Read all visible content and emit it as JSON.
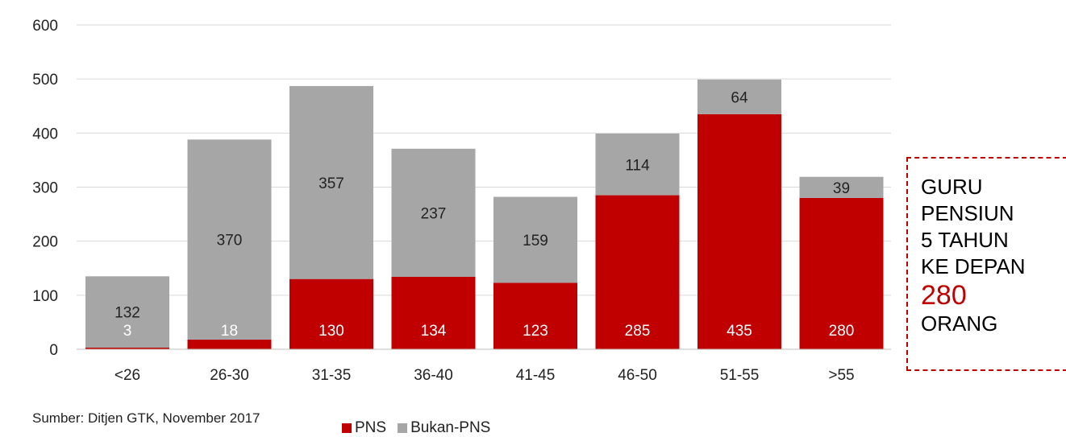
{
  "chart_data": {
    "type": "bar",
    "stacked": true,
    "categories": [
      "<26",
      "26-30",
      "31-35",
      "36-40",
      "41-45",
      "46-50",
      "51-55",
      ">55"
    ],
    "series": [
      {
        "name": "PNS",
        "color": "#c00000",
        "values": [
          3,
          18,
          130,
          134,
          123,
          285,
          435,
          280
        ]
      },
      {
        "name": "Bukan-PNS",
        "color": "#a6a6a6",
        "values": [
          132,
          370,
          357,
          237,
          159,
          114,
          64,
          39
        ]
      }
    ],
    "ylim": [
      0,
      600
    ],
    "yticks": [
      0,
      100,
      200,
      300,
      400,
      500,
      600
    ],
    "grid": true,
    "legend_position": "bottom"
  },
  "source": "Sumber: Ditjen GTK, November 2017",
  "legend": [
    "PNS",
    "Bukan-PNS"
  ],
  "callout": {
    "lines": [
      "GURU",
      "PENSIUN",
      "5 TAHUN",
      "KE DEPAN"
    ],
    "number": "280",
    "unit": "ORANG"
  }
}
